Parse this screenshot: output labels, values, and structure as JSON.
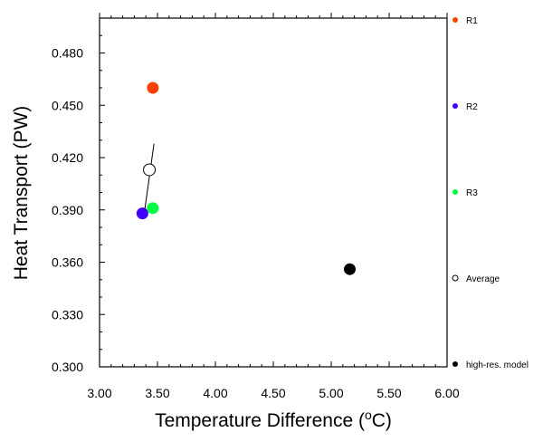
{
  "chart_data": {
    "type": "scatter",
    "title": "",
    "xlabel": "Temperature Difference (",
    "xlabel_super": "o",
    "xlabel_unit": "C)",
    "ylabel": "Heat Transport (PW)",
    "xlim": [
      3.0,
      6.0
    ],
    "ylim": [
      0.3,
      0.5
    ],
    "xticks": [
      "3.00",
      "3.50",
      "4.00",
      "4.50",
      "5.00",
      "5.50",
      "6.00"
    ],
    "yticks": [
      "0.300",
      "0.330",
      "0.360",
      "0.390",
      "0.420",
      "0.450",
      "0.480"
    ],
    "grid": false,
    "legend_position": "right",
    "series": [
      {
        "name": "R1",
        "x": 3.46,
        "y": 0.46,
        "color": "#ff4000",
        "marker": "filled-circle"
      },
      {
        "name": "R2",
        "x": 3.37,
        "y": 0.388,
        "color": "#4000ff",
        "marker": "filled-circle"
      },
      {
        "name": "R3",
        "x": 3.46,
        "y": 0.391,
        "color": "#00ff40",
        "marker": "filled-circle"
      },
      {
        "name": "Average",
        "x": 3.43,
        "y": 0.413,
        "color": "#000000",
        "marker": "open-circle",
        "error_segment": [
          [
            3.39,
            0.39
          ],
          [
            3.47,
            0.428
          ]
        ]
      },
      {
        "name": "high-res. model",
        "x": 5.16,
        "y": 0.356,
        "color": "#000000",
        "marker": "filled-circle"
      }
    ]
  }
}
